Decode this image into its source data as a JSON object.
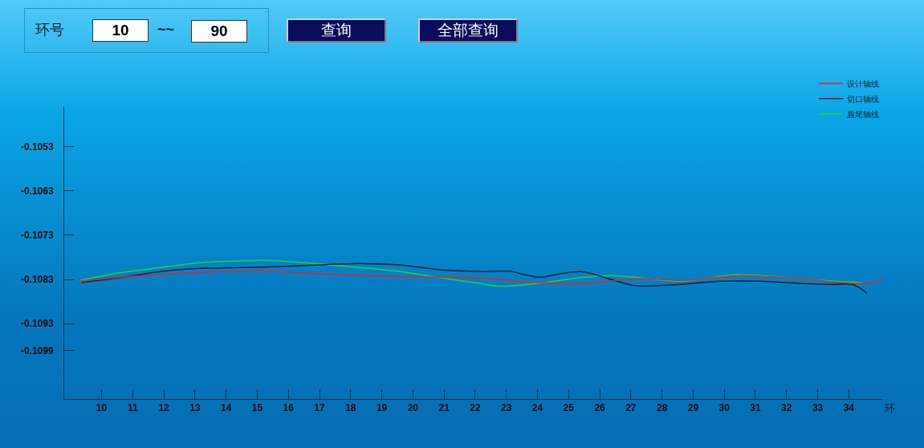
{
  "chart_data": {
    "type": "line",
    "xlabel": "环",
    "annotations": [
      "环号",
      "10",
      "~~",
      "90",
      "查询",
      "全部查询"
    ],
    "xlim": [
      8.8,
      35.1
    ],
    "xticks": [
      10,
      11,
      12,
      13,
      14,
      15,
      16,
      17,
      18,
      19,
      20,
      21,
      22,
      23,
      24,
      25,
      26,
      27,
      28,
      29,
      30,
      31,
      32,
      33,
      34
    ],
    "ylim": [
      -0.111,
      -0.1044
    ],
    "yticks": [
      -0.1053,
      -0.1063,
      -0.1073,
      -0.1083,
      -0.1093,
      -0.1099
    ],
    "grid": false,
    "legend": "top right",
    "marker": "none",
    "line_style": "solid",
    "series": [
      {
        "name": "设计轴线",
        "color": "#e8202a",
        "x": [
          9.31,
          10.59,
          11.88,
          13.16,
          14.45,
          14.96,
          15.73,
          17.01,
          18.3,
          19.59,
          20.87,
          22.16,
          23.45,
          24.73,
          25.5,
          26.27,
          27.3,
          28.59,
          29.87,
          30.64,
          31.16,
          32.44,
          33.73,
          34.5,
          34.83,
          35.08
        ],
        "values": [
          -0.10834,
          -0.10825,
          -0.10819,
          -0.10814,
          -0.1081,
          -0.10809,
          -0.10812,
          -0.10817,
          -0.10821,
          -0.10823,
          -0.10825,
          -0.10826,
          -0.10834,
          -0.10839,
          -0.10839,
          -0.10834,
          -0.10828,
          -0.10832,
          -0.10825,
          -0.10821,
          -0.10823,
          -0.10828,
          -0.10837,
          -0.10839,
          -0.10835,
          -0.10826
        ]
      },
      {
        "name": "切口轴线",
        "color": "#0b2238",
        "x": [
          9.36,
          10.59,
          11.88,
          13.16,
          14.45,
          15.73,
          17.01,
          18.3,
          18.82,
          19.59,
          20.87,
          22.16,
          23.19,
          23.57,
          24.09,
          24.73,
          25.37,
          25.76,
          26.27,
          27.04,
          27.3,
          28.59,
          29.87,
          31.16,
          32.44,
          33.47,
          34.11,
          34.37,
          34.58
        ],
        "values": [
          -0.10837,
          -0.10826,
          -0.10812,
          -0.10805,
          -0.10803,
          -0.10801,
          -0.10797,
          -0.10794,
          -0.10795,
          -0.10797,
          -0.10808,
          -0.10812,
          -0.10812,
          -0.10819,
          -0.10825,
          -0.10817,
          -0.10812,
          -0.10817,
          -0.10828,
          -0.10843,
          -0.10845,
          -0.10841,
          -0.10834,
          -0.10834,
          -0.10839,
          -0.10841,
          -0.10841,
          -0.1085,
          -0.10861
        ]
      },
      {
        "name": "盾尾轴线",
        "color": "#1ed43a",
        "x": [
          9.31,
          10.59,
          11.88,
          13.16,
          14.45,
          14.96,
          15.73,
          17.01,
          18.3,
          19.59,
          20.87,
          22.16,
          22.67,
          23.45,
          24.73,
          25.5,
          26.27,
          27.3,
          28.59,
          29.87,
          30.39,
          31.16,
          32.44,
          33.73,
          34.42
        ],
        "values": [
          -0.10832,
          -0.10815,
          -0.10803,
          -0.10792,
          -0.10788,
          -0.10787,
          -0.10788,
          -0.10795,
          -0.10803,
          -0.10812,
          -0.10826,
          -0.10839,
          -0.10845,
          -0.10843,
          -0.10832,
          -0.10825,
          -0.10821,
          -0.10826,
          -0.10834,
          -0.10823,
          -0.10819,
          -0.10821,
          -0.10828,
          -0.10835,
          -0.10837
        ]
      }
    ]
  }
}
